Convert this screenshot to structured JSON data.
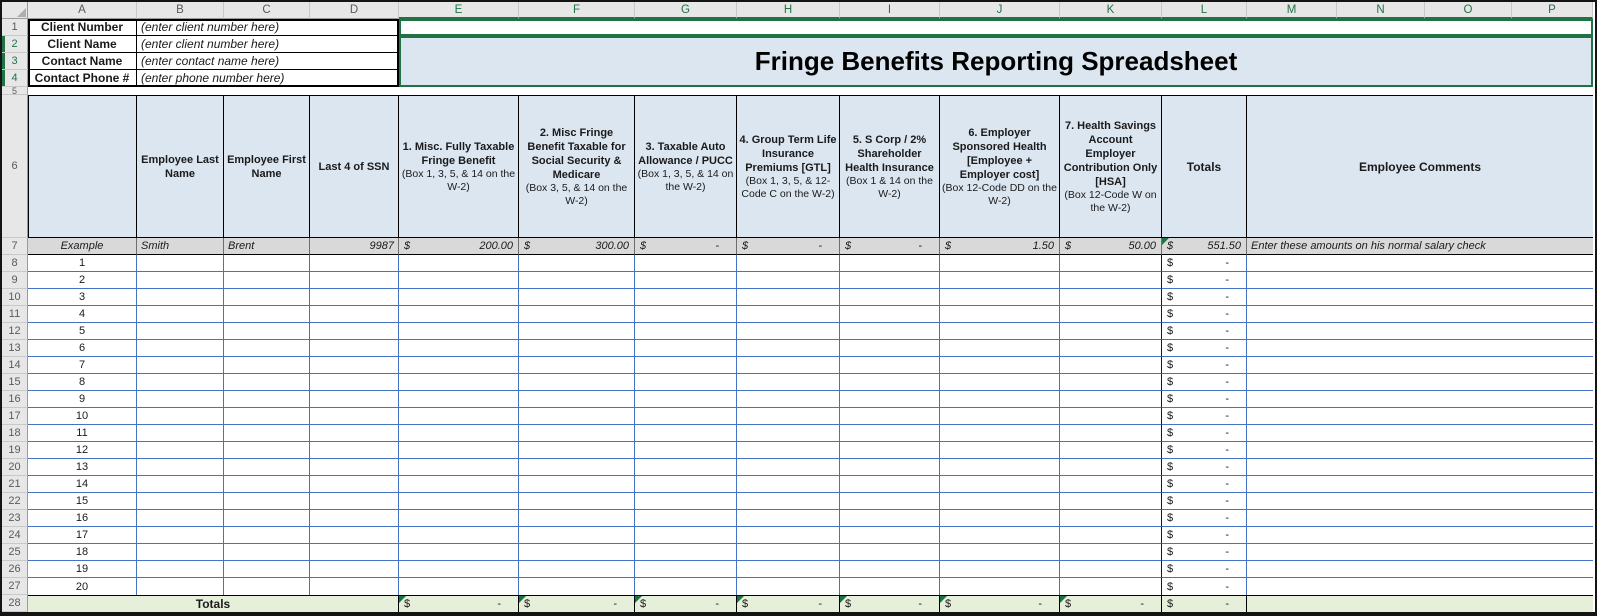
{
  "colors": {
    "selection_green": "#217346",
    "gridline_blue": "#4472C4",
    "header_fill_blue": "#DCE6F1",
    "example_row_gray": "#D9D9D9",
    "totals_row_green": "#E6EFD9"
  },
  "spreadsheet": {
    "column_headers": [
      "A",
      "B",
      "C",
      "D",
      "E",
      "F",
      "G",
      "H",
      "I",
      "J",
      "K",
      "L",
      "M",
      "N",
      "O",
      "P"
    ],
    "row_numbers": [
      "1",
      "2",
      "3",
      "4",
      "5",
      "6",
      "7",
      "8",
      "9",
      "10",
      "11",
      "12",
      "13",
      "14",
      "15",
      "16",
      "17",
      "18",
      "19",
      "20",
      "21",
      "22",
      "23",
      "24",
      "25",
      "26",
      "27",
      "28"
    ]
  },
  "title": "Fringe Benefits Reporting Spreadsheet",
  "client_info": [
    {
      "label": "Client Number",
      "value": "(enter client number here)"
    },
    {
      "label": "Client Name",
      "value": "(enter client number here)"
    },
    {
      "label": "Contact Name",
      "value": "(enter contact name here)"
    },
    {
      "label": "Contact Phone #",
      "value": "(enter phone number here)"
    }
  ],
  "table": {
    "currency": "$",
    "static_headers": {
      "last_name": "Employee Last Name",
      "first_name": "Employee First Name",
      "ssn": "Last 4 of SSN",
      "totals": "Totals",
      "comments": "Employee Comments"
    },
    "benefit_headers": [
      {
        "title": "1. Misc. Fully Taxable Fringe Benefit",
        "note": "(Box 1, 3, 5, & 14 on the W-2)"
      },
      {
        "title": "2. Misc Fringe Benefit Taxable for Social Security & Medicare",
        "note": "(Box 3, 5, & 14 on the W-2)"
      },
      {
        "title": "3. Taxable Auto Allowance / PUCC",
        "note": "(Box 1, 3, 5, & 14 on the W-2)"
      },
      {
        "title": "4. Group Term Life Insurance Premiums [GTL]",
        "note": "(Box 1, 3, 5, & 12-Code C on the W-2)"
      },
      {
        "title": "5. S Corp / 2% Shareholder Health Insurance",
        "note": "(Box 1 & 14 on the W-2)"
      },
      {
        "title": "6. Employer Sponsored Health [Employee + Employer cost]",
        "note": "(Box 12-Code DD on the W-2)"
      },
      {
        "title": "7. Health Savings Account Employer Contribution Only [HSA]",
        "note": "(Box 12-Code W on the W-2)"
      }
    ],
    "example_row": {
      "row_label": "Example",
      "last_name": "Smith",
      "first_name": "Brent",
      "ssn": "9987",
      "amounts": [
        "200.00",
        "300.00",
        "-",
        "-",
        "-",
        "1.50",
        "50.00"
      ],
      "total": "551.50",
      "comment": "Enter these amounts on his normal salary check"
    },
    "data_rows": {
      "labels": [
        "1",
        "2",
        "3",
        "4",
        "5",
        "6",
        "7",
        "8",
        "9",
        "10",
        "11",
        "12",
        "13",
        "14",
        "15",
        "16",
        "17",
        "18",
        "19",
        "20"
      ],
      "total_placeholder": "-"
    },
    "totals_row": {
      "label": "Totals",
      "amounts": [
        "-",
        "-",
        "-",
        "-",
        "-",
        "-",
        "-"
      ],
      "total": "-"
    }
  }
}
